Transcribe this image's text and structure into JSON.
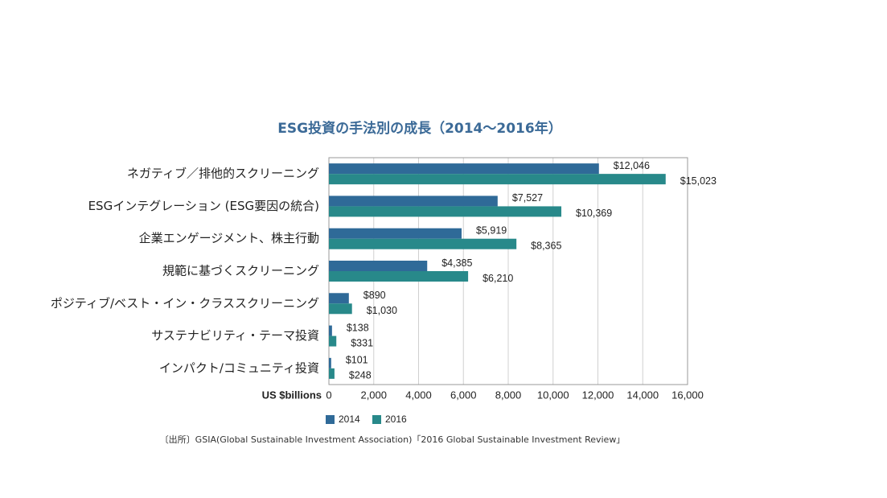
{
  "chart_data": {
    "type": "hbar",
    "title": "ESG投資の手法別の成長（2014～2016年）",
    "categories": [
      "ネガティブ／排他的スクリーニング",
      "ESGインテグレーション (ESG要因の統合)",
      "企業エンゲージメント、株主行動",
      "規範に基づくスクリーニング",
      "ポジティブ/ベスト・イン・クラススクリーニング",
      "サステナビリティ・テーマ投資",
      "インパクト/コミュニティ投資"
    ],
    "series": [
      {
        "name": "2014",
        "color": "#2f6a98",
        "values": [
          12046,
          7527,
          5919,
          4385,
          890,
          138,
          101
        ],
        "value_labels": [
          "$12,046",
          "$7,527",
          "$5,919",
          "$4,385",
          "$890",
          "$138",
          "$101"
        ]
      },
      {
        "name": "2016",
        "color": "#28898a",
        "values": [
          15023,
          10369,
          8365,
          6210,
          1030,
          331,
          248
        ],
        "value_labels": [
          "$15,023",
          "$10,369",
          "$8,365",
          "$6,210",
          "$1,030",
          "$331",
          "$248"
        ]
      }
    ],
    "xlabel": "US $billions",
    "xlim": [
      0,
      16000
    ],
    "xticks": [
      0,
      {
        "value": 2000,
        "label": "2,000"
      },
      {
        "value": 4000,
        "label": "4,000"
      },
      {
        "value": 6000,
        "label": "6,000"
      },
      {
        "value": 8000,
        "label": "8,000"
      },
      {
        "value": 10000,
        "label": "10,000"
      },
      {
        "value": 12000,
        "label": "12,000"
      },
      {
        "value": 14000,
        "label": "14,000"
      },
      {
        "value": 16000,
        "label": "16,000"
      }
    ],
    "grid": true,
    "legend": "bottom",
    "source": "〔出所〕GSIA(Global Sustainable Investment Association)「2016 Global Sustainable Investment Review」"
  }
}
